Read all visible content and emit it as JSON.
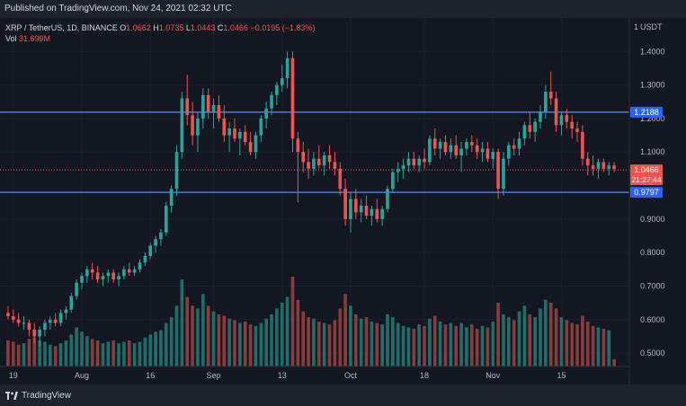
{
  "header": {
    "published": "Published on TradingView.com, Nov 24, 2021 02:32 UTC"
  },
  "legend": {
    "symbol": "XRP / TetherUS, 1D, BINANCE",
    "open_label": "O",
    "open": "1.0662",
    "high_label": "H",
    "high": "1.0735",
    "low_label": "L",
    "low": "1.0443",
    "close_label": "C",
    "close": "1.0466",
    "change": "−0.0195 (−1.83%)",
    "vol_label": "Vol",
    "vol": "31.699M"
  },
  "price_axis": {
    "currency": "USDT",
    "ticks": [
      "1.4000",
      "1.3000",
      "1.2000",
      "1.1000",
      "0.9000",
      "0.8000",
      "0.7000",
      "0.6000",
      "0.5000"
    ]
  },
  "time_axis": {
    "ticks": [
      "19",
      "Aug",
      "16",
      "Sep",
      "13",
      "Oct",
      "18",
      "Nov",
      "15"
    ]
  },
  "price_tags": {
    "resistance": "1.2188",
    "current": "1.0466",
    "countdown": "21:27:44",
    "support": "0.9797"
  },
  "footer": {
    "brand": "TradingView"
  },
  "colors": {
    "bull": "#26a69a",
    "bear": "#ef5350",
    "vol_bull": "#1f6e69",
    "vol_bear": "#8a3b3b",
    "level_line": "#2962ff",
    "bg": "#131722"
  },
  "chart_data": {
    "type": "candlestick",
    "y_range": [
      0.46,
      1.5
    ],
    "horizontal_levels": [
      1.2188,
      0.9797
    ],
    "candles": [
      [
        0.62,
        0.64,
        0.6,
        0.61
      ],
      [
        0.61,
        0.63,
        0.59,
        0.6
      ],
      [
        0.6,
        0.62,
        0.58,
        0.59
      ],
      [
        0.59,
        0.61,
        0.57,
        0.59
      ],
      [
        0.59,
        0.6,
        0.55,
        0.57
      ],
      [
        0.57,
        0.59,
        0.53,
        0.55
      ],
      [
        0.55,
        0.58,
        0.52,
        0.57
      ],
      [
        0.57,
        0.6,
        0.55,
        0.59
      ],
      [
        0.59,
        0.61,
        0.57,
        0.6
      ],
      [
        0.6,
        0.62,
        0.58,
        0.59
      ],
      [
        0.59,
        0.63,
        0.58,
        0.62
      ],
      [
        0.62,
        0.64,
        0.6,
        0.63
      ],
      [
        0.63,
        0.68,
        0.62,
        0.67
      ],
      [
        0.67,
        0.72,
        0.66,
        0.71
      ],
      [
        0.71,
        0.74,
        0.69,
        0.73
      ],
      [
        0.73,
        0.76,
        0.71,
        0.75
      ],
      [
        0.75,
        0.77,
        0.72,
        0.74
      ],
      [
        0.74,
        0.76,
        0.71,
        0.72
      ],
      [
        0.72,
        0.74,
        0.7,
        0.73
      ],
      [
        0.73,
        0.75,
        0.71,
        0.74
      ],
      [
        0.74,
        0.75,
        0.71,
        0.72
      ],
      [
        0.72,
        0.74,
        0.7,
        0.73
      ],
      [
        0.73,
        0.76,
        0.72,
        0.75
      ],
      [
        0.75,
        0.77,
        0.73,
        0.74
      ],
      [
        0.74,
        0.76,
        0.73,
        0.75
      ],
      [
        0.75,
        0.78,
        0.74,
        0.77
      ],
      [
        0.77,
        0.8,
        0.76,
        0.79
      ],
      [
        0.79,
        0.83,
        0.78,
        0.82
      ],
      [
        0.82,
        0.85,
        0.8,
        0.84
      ],
      [
        0.84,
        0.87,
        0.82,
        0.86
      ],
      [
        0.86,
        0.95,
        0.85,
        0.94
      ],
      [
        0.94,
        1.0,
        0.92,
        0.99
      ],
      [
        0.99,
        1.12,
        0.97,
        1.1
      ],
      [
        1.1,
        1.28,
        1.08,
        1.26
      ],
      [
        1.26,
        1.33,
        1.18,
        1.21
      ],
      [
        1.21,
        1.25,
        1.12,
        1.15
      ],
      [
        1.15,
        1.22,
        1.1,
        1.2
      ],
      [
        1.2,
        1.29,
        1.17,
        1.27
      ],
      [
        1.27,
        1.29,
        1.2,
        1.22
      ],
      [
        1.22,
        1.26,
        1.17,
        1.24
      ],
      [
        1.24,
        1.27,
        1.19,
        1.2
      ],
      [
        1.2,
        1.24,
        1.13,
        1.15
      ],
      [
        1.15,
        1.19,
        1.1,
        1.17
      ],
      [
        1.17,
        1.2,
        1.13,
        1.14
      ],
      [
        1.14,
        1.17,
        1.09,
        1.16
      ],
      [
        1.16,
        1.18,
        1.12,
        1.13
      ],
      [
        1.13,
        1.16,
        1.09,
        1.1
      ],
      [
        1.1,
        1.16,
        1.08,
        1.15
      ],
      [
        1.15,
        1.21,
        1.13,
        1.2
      ],
      [
        1.2,
        1.25,
        1.17,
        1.23
      ],
      [
        1.23,
        1.28,
        1.21,
        1.27
      ],
      [
        1.27,
        1.31,
        1.24,
        1.3
      ],
      [
        1.3,
        1.36,
        1.28,
        1.32
      ],
      [
        1.32,
        1.4,
        1.29,
        1.38
      ],
      [
        1.38,
        1.4,
        1.1,
        1.14
      ],
      [
        1.14,
        1.16,
        0.95,
        1.1
      ],
      [
        1.1,
        1.13,
        1.04,
        1.07
      ],
      [
        1.07,
        1.11,
        1.02,
        1.05
      ],
      [
        1.05,
        1.1,
        1.03,
        1.08
      ],
      [
        1.08,
        1.12,
        1.05,
        1.06
      ],
      [
        1.06,
        1.1,
        1.03,
        1.09
      ],
      [
        1.09,
        1.12,
        1.05,
        1.07
      ],
      [
        1.07,
        1.1,
        1.03,
        1.05
      ],
      [
        1.05,
        1.07,
        0.97,
        0.99
      ],
      [
        0.99,
        1.02,
        0.88,
        0.9
      ],
      [
        0.9,
        0.98,
        0.86,
        0.96
      ],
      [
        0.96,
        0.99,
        0.9,
        0.92
      ],
      [
        0.92,
        0.96,
        0.89,
        0.94
      ],
      [
        0.94,
        0.97,
        0.9,
        0.91
      ],
      [
        0.91,
        0.94,
        0.88,
        0.93
      ],
      [
        0.93,
        0.96,
        0.89,
        0.9
      ],
      [
        0.9,
        0.94,
        0.88,
        0.93
      ],
      [
        0.93,
        1.0,
        0.92,
        0.99
      ],
      [
        0.99,
        1.05,
        0.98,
        1.04
      ],
      [
        1.04,
        1.07,
        1.01,
        1.05
      ],
      [
        1.05,
        1.08,
        1.02,
        1.06
      ],
      [
        1.06,
        1.1,
        1.04,
        1.08
      ],
      [
        1.08,
        1.1,
        1.05,
        1.06
      ],
      [
        1.06,
        1.09,
        1.04,
        1.08
      ],
      [
        1.08,
        1.11,
        1.05,
        1.07
      ],
      [
        1.07,
        1.15,
        1.06,
        1.14
      ],
      [
        1.14,
        1.17,
        1.09,
        1.11
      ],
      [
        1.11,
        1.14,
        1.08,
        1.13
      ],
      [
        1.13,
        1.15,
        1.09,
        1.1
      ],
      [
        1.1,
        1.14,
        1.08,
        1.12
      ],
      [
        1.12,
        1.15,
        1.08,
        1.09
      ],
      [
        1.09,
        1.13,
        1.04,
        1.11
      ],
      [
        1.11,
        1.14,
        1.09,
        1.13
      ],
      [
        1.13,
        1.15,
        1.1,
        1.12
      ],
      [
        1.12,
        1.14,
        1.08,
        1.1
      ],
      [
        1.1,
        1.13,
        1.07,
        1.11
      ],
      [
        1.11,
        1.13,
        1.07,
        1.08
      ],
      [
        1.08,
        1.11,
        1.05,
        1.1
      ],
      [
        1.1,
        1.11,
        0.96,
        0.99
      ],
      [
        0.99,
        1.1,
        0.97,
        1.08
      ],
      [
        1.08,
        1.13,
        1.06,
        1.12
      ],
      [
        1.12,
        1.14,
        1.09,
        1.11
      ],
      [
        1.11,
        1.16,
        1.09,
        1.14
      ],
      [
        1.14,
        1.19,
        1.12,
        1.18
      ],
      [
        1.18,
        1.22,
        1.14,
        1.16
      ],
      [
        1.16,
        1.2,
        1.13,
        1.19
      ],
      [
        1.19,
        1.24,
        1.17,
        1.22
      ],
      [
        1.22,
        1.3,
        1.2,
        1.28
      ],
      [
        1.28,
        1.34,
        1.24,
        1.26
      ],
      [
        1.26,
        1.28,
        1.16,
        1.18
      ],
      [
        1.18,
        1.22,
        1.15,
        1.21
      ],
      [
        1.21,
        1.23,
        1.17,
        1.19
      ],
      [
        1.19,
        1.21,
        1.14,
        1.17
      ],
      [
        1.17,
        1.19,
        1.13,
        1.16
      ],
      [
        1.16,
        1.18,
        1.06,
        1.08
      ],
      [
        1.08,
        1.1,
        1.03,
        1.06
      ],
      [
        1.06,
        1.09,
        1.03,
        1.05
      ],
      [
        1.05,
        1.08,
        1.02,
        1.07
      ],
      [
        1.07,
        1.08,
        1.04,
        1.05
      ],
      [
        1.05,
        1.07,
        1.03,
        1.06
      ],
      [
        1.06,
        1.07,
        1.04,
        1.05
      ]
    ],
    "volume": [
      0.18,
      0.17,
      0.15,
      0.16,
      0.19,
      0.2,
      0.18,
      0.17,
      0.15,
      0.14,
      0.16,
      0.18,
      0.22,
      0.27,
      0.24,
      0.21,
      0.19,
      0.18,
      0.16,
      0.17,
      0.18,
      0.16,
      0.17,
      0.18,
      0.16,
      0.17,
      0.2,
      0.22,
      0.24,
      0.25,
      0.3,
      0.34,
      0.42,
      0.6,
      0.48,
      0.42,
      0.4,
      0.5,
      0.42,
      0.38,
      0.36,
      0.35,
      0.33,
      0.32,
      0.3,
      0.31,
      0.29,
      0.28,
      0.3,
      0.33,
      0.36,
      0.4,
      0.44,
      0.48,
      0.62,
      0.46,
      0.38,
      0.34,
      0.33,
      0.31,
      0.3,
      0.29,
      0.32,
      0.4,
      0.5,
      0.42,
      0.36,
      0.33,
      0.34,
      0.31,
      0.3,
      0.29,
      0.36,
      0.34,
      0.3,
      0.28,
      0.27,
      0.26,
      0.29,
      0.28,
      0.33,
      0.35,
      0.31,
      0.29,
      0.3,
      0.28,
      0.3,
      0.27,
      0.29,
      0.26,
      0.28,
      0.27,
      0.31,
      0.44,
      0.36,
      0.34,
      0.32,
      0.38,
      0.42,
      0.36,
      0.34,
      0.4,
      0.46,
      0.44,
      0.4,
      0.34,
      0.32,
      0.3,
      0.29,
      0.35,
      0.31,
      0.28,
      0.27,
      0.26,
      0.25,
      0.05
    ]
  }
}
